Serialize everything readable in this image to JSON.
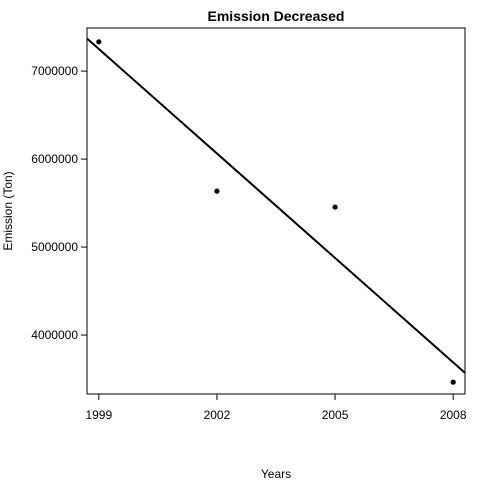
{
  "chart_data": {
    "type": "scatter",
    "title": "Emission Decreased",
    "xlabel": "Years",
    "ylabel": "Emission (Ton)",
    "x_ticks": [
      1999,
      2002,
      2005,
      2008
    ],
    "y_ticks": [
      4000000,
      5000000,
      6000000,
      7000000
    ],
    "x_tick_labels": [
      "1999",
      "2002",
      "2005",
      "2008"
    ],
    "y_tick_labels": [
      "4000000",
      "5000000",
      "6000000",
      "7000000"
    ],
    "xlim": [
      1998.7,
      2008.3
    ],
    "ylim": [
      3330000,
      7490000
    ],
    "series": [
      {
        "x": [
          1999,
          2002,
          2005,
          2008
        ],
        "y": [
          7332967,
          5635780,
          5454703,
          3464206
        ]
      }
    ],
    "trend_line": {
      "type": "linear",
      "points": [
        [
          1998.7,
          7370000
        ],
        [
          2008.3,
          3570000
        ]
      ]
    },
    "grid": false,
    "legend": "none"
  }
}
